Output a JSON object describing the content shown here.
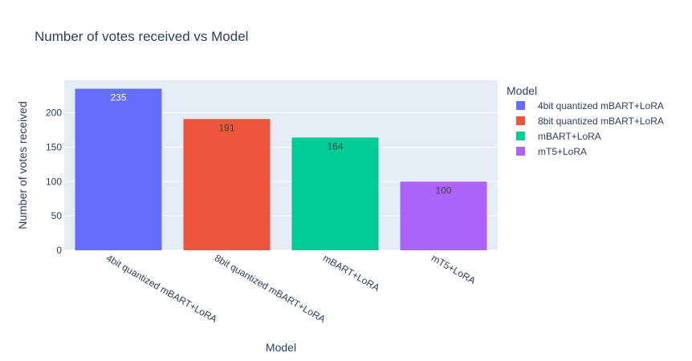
{
  "chart_data": {
    "type": "bar",
    "title": "Number of votes received vs Model",
    "xlabel": "Model",
    "ylabel": "Number of votes received",
    "categories": [
      "4bit quantized mBART+LoRA",
      "8bit quantized mBART+LoRA",
      "mBART+LoRA",
      "mT5+LoRA"
    ],
    "values": [
      235,
      191,
      164,
      100
    ],
    "value_labels": [
      "235",
      "191",
      "164",
      "100"
    ],
    "colors": [
      "#636efa",
      "#ef553b",
      "#00cc96",
      "#ab63fa"
    ],
    "label_colors": [
      "#ffffff",
      "#444444",
      "#444444",
      "#444444"
    ],
    "ylim": [
      0,
      247.4
    ],
    "yticks": [
      0,
      50,
      100,
      150,
      200
    ],
    "ytick_labels": [
      "0",
      "50",
      "100",
      "150",
      "200"
    ],
    "grid": true,
    "legend": {
      "title": "Model",
      "position": "right",
      "entries": [
        "4bit quantized mBART+LoRA",
        "8bit quantized mBART+LoRA",
        "mBART+LoRA",
        "mT5+LoRA"
      ]
    },
    "plot_background": "#e5ecf6"
  }
}
